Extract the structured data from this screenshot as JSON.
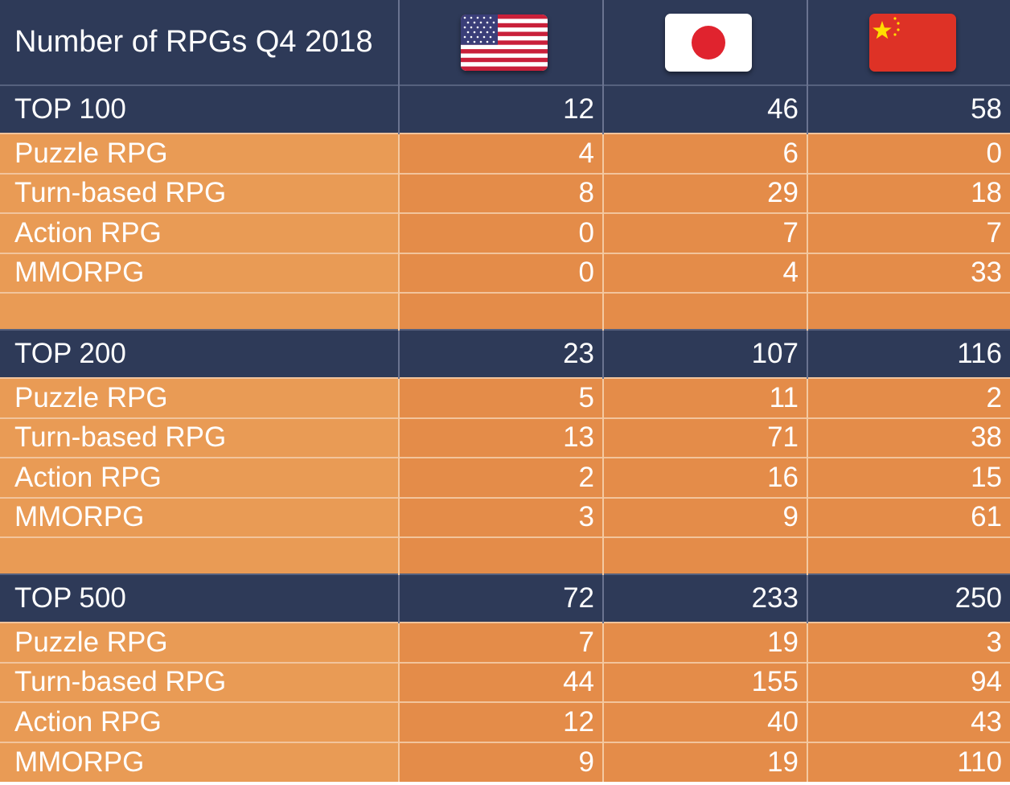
{
  "chart_data": {
    "type": "table",
    "title": "Number of RPGs Q4 2018",
    "columns": [
      {
        "country": "United States",
        "flag_icon": "us-flag-icon"
      },
      {
        "country": "Japan",
        "flag_icon": "japan-flag-icon"
      },
      {
        "country": "China",
        "flag_icon": "china-flag-icon"
      }
    ],
    "sections": [
      {
        "label": "TOP 100",
        "totals": [
          "12",
          "46",
          "58"
        ],
        "rows": [
          {
            "label": "Puzzle RPG",
            "values": [
              "4",
              "6",
              "0"
            ]
          },
          {
            "label": "Turn-based RPG",
            "values": [
              "8",
              "29",
              "18"
            ]
          },
          {
            "label": "Action RPG",
            "values": [
              "0",
              "7",
              "7"
            ]
          },
          {
            "label": "MMORPG",
            "values": [
              "0",
              "4",
              "33"
            ]
          }
        ]
      },
      {
        "label": "TOP 200",
        "totals": [
          "23",
          "107",
          "116"
        ],
        "rows": [
          {
            "label": "Puzzle RPG",
            "values": [
              "5",
              "11",
              "2"
            ]
          },
          {
            "label": "Turn-based RPG",
            "values": [
              "13",
              "71",
              "38"
            ]
          },
          {
            "label": "Action RPG",
            "values": [
              "2",
              "16",
              "15"
            ]
          },
          {
            "label": "MMORPG",
            "values": [
              "3",
              "9",
              "61"
            ]
          }
        ]
      },
      {
        "label": "TOP 500",
        "totals": [
          "72",
          "233",
          "250"
        ],
        "rows": [
          {
            "label": "Puzzle RPG",
            "values": [
              "7",
              "19",
              "3"
            ]
          },
          {
            "label": "Turn-based RPG",
            "values": [
              "44",
              "155",
              "94"
            ]
          },
          {
            "label": "Action RPG",
            "values": [
              "12",
              "40",
              "43"
            ]
          },
          {
            "label": "MMORPG",
            "values": [
              "9",
              "19",
              "110"
            ]
          }
        ]
      }
    ]
  },
  "colors": {
    "header_bg": "#2e3a58",
    "label_cell_bg": "#e99b55",
    "value_cell_bg": "#e48c49",
    "text": "#ffffff"
  }
}
